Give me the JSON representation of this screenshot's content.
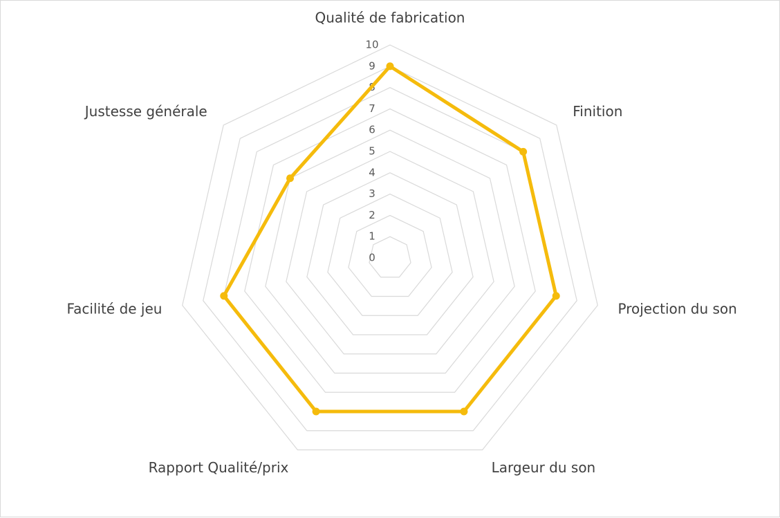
{
  "chart_data": {
    "type": "radar",
    "categories": [
      "Qualité de fabrication",
      "Finition",
      "Projection du son",
      "Largeur du son",
      "Rapport Qualité/prix",
      "Facilité de jeu",
      "Justesse générale"
    ],
    "series": [
      {
        "values": [
          9,
          8,
          8,
          8,
          8,
          8,
          6
        ]
      }
    ],
    "rlim": [
      0,
      10
    ],
    "ticks": [
      "0",
      "1",
      "2",
      "3",
      "4",
      "5",
      "6",
      "7",
      "8",
      "9",
      "10"
    ],
    "grid": true,
    "legend": "none",
    "colors": {
      "series": "#F5BB0C",
      "grid": "#D9D9D9"
    }
  }
}
